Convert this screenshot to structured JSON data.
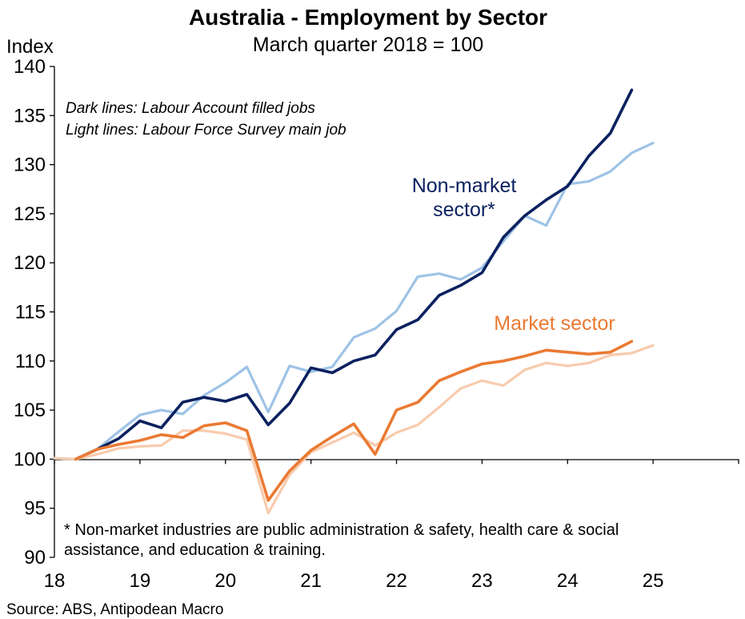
{
  "chart_data": {
    "type": "line",
    "title": "Australia - Employment by Sector",
    "subtitle": "March quarter 2018 = 100",
    "ylabel": "Index",
    "ylim": [
      90,
      140
    ],
    "yticks": [
      90,
      95,
      100,
      105,
      110,
      115,
      120,
      125,
      130,
      135,
      140
    ],
    "xlim": [
      2018.0,
      2026.0
    ],
    "xticks": [
      {
        "x": 2018.0,
        "label": "18"
      },
      {
        "x": 2019.0,
        "label": "19"
      },
      {
        "x": 2020.0,
        "label": "20"
      },
      {
        "x": 2021.0,
        "label": "21"
      },
      {
        "x": 2022.0,
        "label": "22"
      },
      {
        "x": 2023.0,
        "label": "23"
      },
      {
        "x": 2024.0,
        "label": "24"
      },
      {
        "x": 2025.0,
        "label": "25"
      }
    ],
    "baseline": 100,
    "grid": false,
    "notes": [
      "Dark lines: Labour Account filled jobs",
      "Light lines: Labour Force Survey main job"
    ],
    "footnote": [
      "* Non-market industries are public administration & safety, health care & social",
      "assistance, and education & training."
    ],
    "source": "Source: ABS, Antipodean Macro",
    "series_labels": [
      {
        "text": "Non-market",
        "color": "#0b2160"
      },
      {
        "text": "sector*",
        "color": "#0b2160"
      },
      {
        "text": "Market sector",
        "color": "#ea7a33"
      }
    ],
    "series": [
      {
        "color": "#9ec3e6",
        "x": [
          2018.0,
          2018.25,
          2018.5,
          2018.75,
          2019.0,
          2019.25,
          2019.5,
          2019.75,
          2020.0,
          2020.25,
          2020.5,
          2020.75,
          2021.0,
          2021.25,
          2021.5,
          2021.75,
          2022.0,
          2022.25,
          2022.5,
          2022.75,
          2023.0,
          2023.25,
          2023.5,
          2023.75,
          2024.0,
          2024.25,
          2024.5,
          2024.75,
          2025.0
        ],
        "values": [
          100.1,
          100.0,
          101.0,
          102.8,
          104.5,
          105.0,
          104.6,
          106.5,
          107.8,
          109.4,
          104.8,
          109.5,
          108.9,
          109.4,
          112.4,
          113.3,
          115.1,
          118.6,
          118.9,
          118.3,
          119.5,
          122.2,
          124.8,
          123.8,
          128.0,
          128.3,
          129.3,
          131.2,
          132.2
        ]
      },
      {
        "color": "#0b2160",
        "x": [
          2018.25,
          2018.5,
          2018.75,
          2019.0,
          2019.25,
          2019.5,
          2019.75,
          2020.0,
          2020.25,
          2020.5,
          2020.75,
          2021.0,
          2021.25,
          2021.5,
          2021.75,
          2022.0,
          2022.25,
          2022.5,
          2022.75,
          2023.0,
          2023.25,
          2023.5,
          2023.75,
          2024.0,
          2024.25,
          2024.5,
          2024.75
        ],
        "values": [
          100.0,
          101.0,
          102.1,
          103.9,
          103.2,
          105.8,
          106.3,
          105.9,
          106.6,
          103.5,
          105.7,
          109.3,
          108.8,
          110.0,
          110.6,
          113.2,
          114.2,
          116.7,
          117.7,
          119.0,
          122.6,
          124.8,
          126.4,
          127.8,
          130.9,
          133.2,
          137.6
        ]
      },
      {
        "color": "#f8cbad",
        "x": [
          2018.0,
          2018.25,
          2018.5,
          2018.75,
          2019.0,
          2019.25,
          2019.5,
          2019.75,
          2020.0,
          2020.25,
          2020.5,
          2020.75,
          2021.0,
          2021.25,
          2021.5,
          2021.75,
          2022.0,
          2022.25,
          2022.5,
          2022.75,
          2023.0,
          2023.25,
          2023.5,
          2023.75,
          2024.0,
          2024.25,
          2024.5,
          2024.75,
          2025.0
        ],
        "values": [
          100.1,
          100.0,
          100.5,
          101.1,
          101.3,
          101.4,
          102.9,
          102.9,
          102.6,
          102.0,
          94.5,
          98.4,
          100.7,
          101.7,
          102.7,
          101.4,
          102.7,
          103.5,
          105.3,
          107.2,
          108.0,
          107.5,
          109.1,
          109.8,
          109.5,
          109.8,
          110.6,
          110.8,
          111.6
        ]
      },
      {
        "color": "#ea7a33",
        "x": [
          2018.25,
          2018.5,
          2018.75,
          2019.0,
          2019.25,
          2019.5,
          2019.75,
          2020.0,
          2020.25,
          2020.5,
          2020.75,
          2021.0,
          2021.25,
          2021.5,
          2021.75,
          2022.0,
          2022.25,
          2022.5,
          2022.75,
          2023.0,
          2023.25,
          2023.5,
          2023.75,
          2024.0,
          2024.25,
          2024.5,
          2024.75
        ],
        "values": [
          100.0,
          101.0,
          101.5,
          101.9,
          102.5,
          102.2,
          103.4,
          103.7,
          102.9,
          95.8,
          98.8,
          100.9,
          102.3,
          103.6,
          100.5,
          105.0,
          105.8,
          108.0,
          108.9,
          109.7,
          110.0,
          110.5,
          111.1,
          110.9,
          110.7,
          110.9,
          112.0
        ]
      }
    ]
  }
}
